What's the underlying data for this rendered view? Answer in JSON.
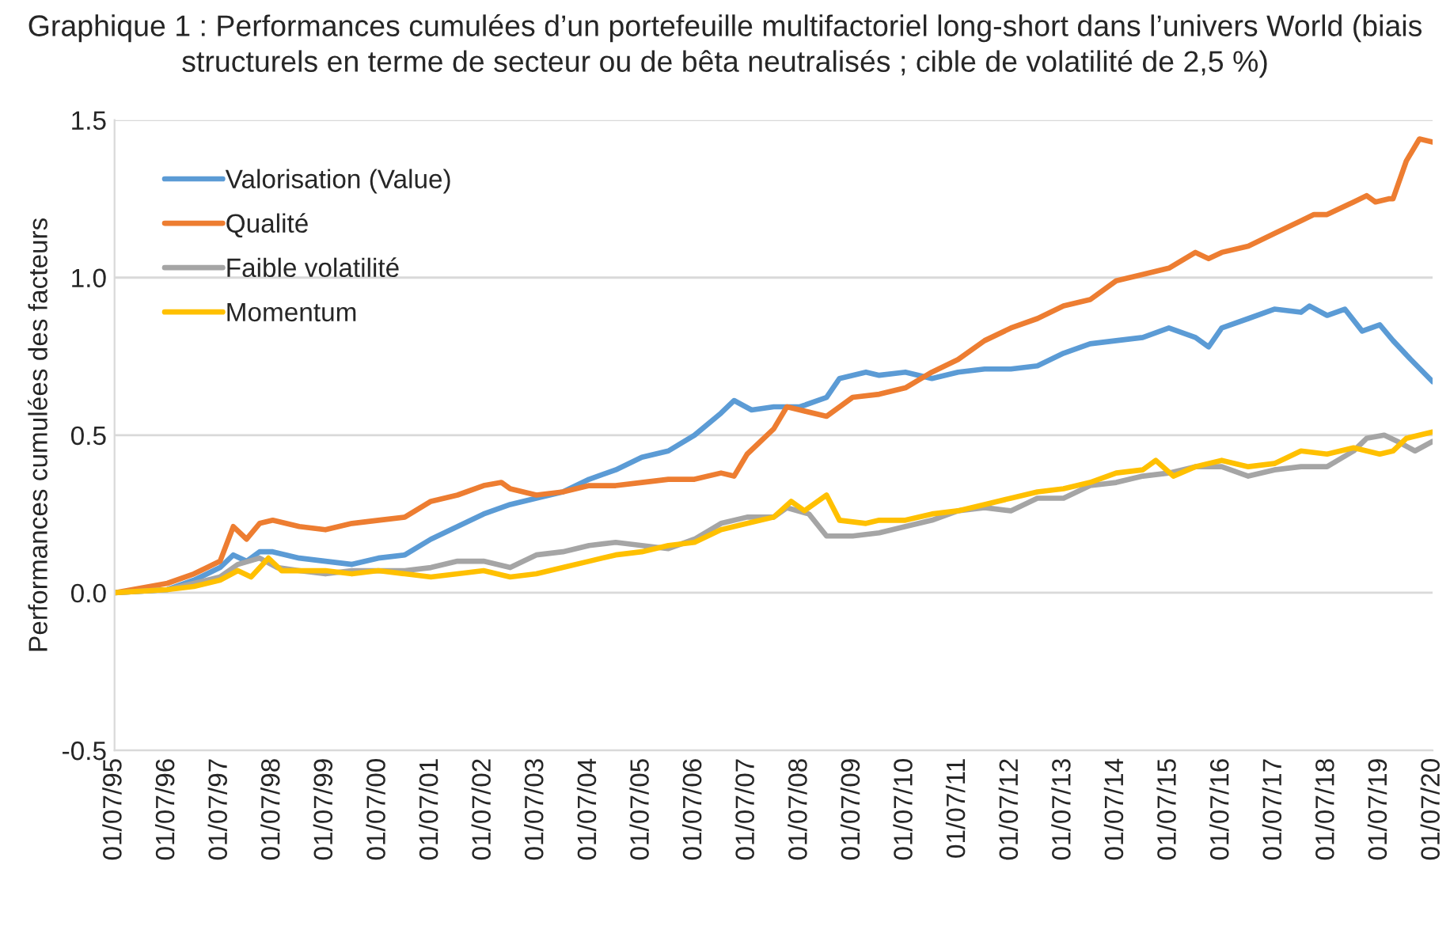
{
  "chart_data": {
    "type": "line",
    "title": "Graphique 1 : Performances cumulées d’un portefeuille multifactoriel long-short dans l’univers World (biais structurels en terme de secteur ou de bêta neutralisés ; cible de volatilité de 2,5 %)",
    "ylabel": "Performances cumulées des facteurs",
    "xlim": [
      "1995-07-01",
      "2020-07-01"
    ],
    "xticks": [
      {
        "value": "1995-07-01",
        "label": "01/07/95"
      },
      {
        "value": "1996-07-01",
        "label": "01/07/96"
      },
      {
        "value": "1997-07-01",
        "label": "01/07/97"
      },
      {
        "value": "1998-07-01",
        "label": "01/07/98"
      },
      {
        "value": "1999-07-01",
        "label": "01/07/99"
      },
      {
        "value": "2000-07-01",
        "label": "01/07/00"
      },
      {
        "value": "2001-07-01",
        "label": "01/07/01"
      },
      {
        "value": "2002-07-01",
        "label": "01/07/02"
      },
      {
        "value": "2003-07-01",
        "label": "01/07/03"
      },
      {
        "value": "2004-07-01",
        "label": "01/07/04"
      },
      {
        "value": "2005-07-01",
        "label": "01/07/05"
      },
      {
        "value": "2006-07-01",
        "label": "01/07/06"
      },
      {
        "value": "2007-07-01",
        "label": "01/07/07"
      },
      {
        "value": "2008-07-01",
        "label": "01/07/08"
      },
      {
        "value": "2009-07-01",
        "label": "01/07/09"
      },
      {
        "value": "2010-07-01",
        "label": "01/07/10"
      },
      {
        "value": "2011-07-01",
        "label": "01/07/11"
      },
      {
        "value": "2012-07-01",
        "label": "01/07/12"
      },
      {
        "value": "2013-07-01",
        "label": "01/07/13"
      },
      {
        "value": "2014-07-01",
        "label": "01/07/14"
      },
      {
        "value": "2015-07-01",
        "label": "01/07/15"
      },
      {
        "value": "2016-07-01",
        "label": "01/07/16"
      },
      {
        "value": "2017-07-01",
        "label": "01/07/17"
      },
      {
        "value": "2018-07-01",
        "label": "01/07/18"
      },
      {
        "value": "2019-07-01",
        "label": "01/07/19"
      },
      {
        "value": "2020-07-01",
        "label": "01/07/20"
      }
    ],
    "ylim": [
      -0.5,
      1.5
    ],
    "yticks": [
      {
        "value": -0.5,
        "label": "-0.5"
      },
      {
        "value": 0,
        "label": "0.0"
      },
      {
        "value": 0.5,
        "label": "0.5"
      },
      {
        "value": 1,
        "label": "1.0"
      },
      {
        "value": 1.5,
        "label": "1.5"
      }
    ],
    "grid": "y",
    "legend": "top left",
    "marker": "none",
    "line_style": "solid",
    "series": [
      {
        "name": "Valorisation (Value)",
        "color": "#5b9bd5",
        "x": [
          "1995-07",
          "1996-07",
          "1997-01",
          "1997-07",
          "1997-10",
          "1998-01",
          "1998-04",
          "1998-07",
          "1999-01",
          "1999-07",
          "2000-01",
          "2000-07",
          "2001-01",
          "2001-07",
          "2002-01",
          "2002-07",
          "2003-01",
          "2003-07",
          "2004-01",
          "2004-07",
          "2005-01",
          "2005-07",
          "2006-01",
          "2006-07",
          "2007-01",
          "2007-04",
          "2007-08",
          "2008-01",
          "2008-07",
          "2009-01",
          "2009-04",
          "2009-10",
          "2010-01",
          "2010-07",
          "2011-01",
          "2011-07",
          "2012-01",
          "2012-07",
          "2013-01",
          "2013-07",
          "2014-01",
          "2014-07",
          "2015-01",
          "2015-07",
          "2016-01",
          "2016-04",
          "2016-07",
          "2017-01",
          "2017-07",
          "2018-01",
          "2018-03",
          "2018-07",
          "2018-11",
          "2019-03",
          "2019-07",
          "2019-10",
          "2020-02",
          "2020-07"
        ],
        "values": [
          0,
          0.01,
          0.04,
          0.08,
          0.12,
          0.1,
          0.13,
          0.13,
          0.11,
          0.1,
          0.09,
          0.11,
          0.12,
          0.17,
          0.21,
          0.25,
          0.28,
          0.3,
          0.32,
          0.36,
          0.39,
          0.43,
          0.45,
          0.5,
          0.57,
          0.61,
          0.58,
          0.59,
          0.59,
          0.62,
          0.68,
          0.7,
          0.69,
          0.7,
          0.68,
          0.7,
          0.71,
          0.71,
          0.72,
          0.76,
          0.79,
          0.8,
          0.81,
          0.84,
          0.81,
          0.78,
          0.84,
          0.87,
          0.9,
          0.89,
          0.91,
          0.88,
          0.9,
          0.83,
          0.85,
          0.8,
          0.74,
          0.67
        ]
      },
      {
        "name": "Qualité",
        "color": "#ed7d31",
        "x": [
          "1995-07",
          "1996-07",
          "1997-01",
          "1997-07",
          "1997-10",
          "1998-01",
          "1998-04",
          "1998-07",
          "1999-01",
          "1999-07",
          "2000-01",
          "2000-07",
          "2001-01",
          "2001-07",
          "2002-01",
          "2002-07",
          "2002-11",
          "2003-01",
          "2003-07",
          "2004-01",
          "2004-07",
          "2005-01",
          "2005-07",
          "2006-01",
          "2006-07",
          "2007-01",
          "2007-04",
          "2007-07",
          "2008-01",
          "2008-04",
          "2008-07",
          "2009-01",
          "2009-07",
          "2010-01",
          "2010-07",
          "2011-01",
          "2011-07",
          "2012-01",
          "2012-07",
          "2013-01",
          "2013-07",
          "2014-01",
          "2014-07",
          "2015-01",
          "2015-07",
          "2016-01",
          "2016-04",
          "2016-07",
          "2017-01",
          "2017-07",
          "2018-01",
          "2018-04",
          "2018-07",
          "2019-01",
          "2019-04",
          "2019-06",
          "2019-09",
          "2019-10",
          "2020-01",
          "2020-04",
          "2020-07"
        ],
        "values": [
          0,
          0.03,
          0.06,
          0.1,
          0.21,
          0.17,
          0.22,
          0.23,
          0.21,
          0.2,
          0.22,
          0.23,
          0.24,
          0.29,
          0.31,
          0.34,
          0.35,
          0.33,
          0.31,
          0.32,
          0.34,
          0.34,
          0.35,
          0.36,
          0.36,
          0.38,
          0.37,
          0.44,
          0.52,
          0.59,
          0.58,
          0.56,
          0.62,
          0.63,
          0.65,
          0.7,
          0.74,
          0.8,
          0.84,
          0.87,
          0.91,
          0.93,
          0.99,
          1.01,
          1.03,
          1.08,
          1.06,
          1.08,
          1.1,
          1.14,
          1.18,
          1.2,
          1.2,
          1.24,
          1.26,
          1.24,
          1.25,
          1.25,
          1.37,
          1.44,
          1.43
        ]
      },
      {
        "name": "Faible volatilité",
        "color": "#a5a5a5",
        "x": [
          "1995-07",
          "1996-07",
          "1997-01",
          "1997-07",
          "1997-11",
          "1998-04",
          "1998-08",
          "1999-01",
          "1999-07",
          "2000-01",
          "2000-07",
          "2001-01",
          "2001-07",
          "2002-01",
          "2002-07",
          "2003-01",
          "2003-07",
          "2004-01",
          "2004-07",
          "2005-01",
          "2005-07",
          "2006-01",
          "2006-07",
          "2007-01",
          "2007-07",
          "2008-01",
          "2008-04",
          "2008-09",
          "2009-01",
          "2009-07",
          "2010-01",
          "2010-07",
          "2011-01",
          "2011-07",
          "2012-01",
          "2012-07",
          "2013-01",
          "2013-07",
          "2014-01",
          "2014-07",
          "2015-01",
          "2015-07",
          "2016-01",
          "2016-07",
          "2017-01",
          "2017-07",
          "2018-01",
          "2018-07",
          "2019-01",
          "2019-04",
          "2019-08",
          "2019-11",
          "2020-03",
          "2020-07"
        ],
        "values": [
          0,
          0.01,
          0.03,
          0.05,
          0.09,
          0.11,
          0.08,
          0.07,
          0.06,
          0.07,
          0.07,
          0.07,
          0.08,
          0.1,
          0.1,
          0.08,
          0.12,
          0.13,
          0.15,
          0.16,
          0.15,
          0.14,
          0.17,
          0.22,
          0.24,
          0.24,
          0.27,
          0.25,
          0.18,
          0.18,
          0.19,
          0.21,
          0.23,
          0.26,
          0.27,
          0.26,
          0.3,
          0.3,
          0.34,
          0.35,
          0.37,
          0.38,
          0.4,
          0.4,
          0.37,
          0.39,
          0.4,
          0.4,
          0.45,
          0.49,
          0.5,
          0.48,
          0.45,
          0.48
        ]
      },
      {
        "name": "Momentum",
        "color": "#ffc000",
        "x": [
          "1995-07",
          "1996-07",
          "1997-01",
          "1997-07",
          "1997-11",
          "1998-02",
          "1998-06",
          "1998-09",
          "1999-01",
          "1999-07",
          "2000-01",
          "2000-07",
          "2001-01",
          "2001-07",
          "2002-01",
          "2002-07",
          "2003-01",
          "2003-07",
          "2004-01",
          "2004-07",
          "2005-01",
          "2005-07",
          "2006-01",
          "2006-07",
          "2007-01",
          "2007-07",
          "2008-01",
          "2008-05",
          "2008-08",
          "2009-01",
          "2009-04",
          "2009-10",
          "2010-01",
          "2010-07",
          "2011-01",
          "2011-07",
          "2012-01",
          "2012-07",
          "2013-01",
          "2013-07",
          "2014-01",
          "2014-07",
          "2015-01",
          "2015-04",
          "2015-08",
          "2016-01",
          "2016-07",
          "2017-01",
          "2017-07",
          "2018-01",
          "2018-07",
          "2019-01",
          "2019-07",
          "2019-10",
          "2020-01",
          "2020-07"
        ],
        "values": [
          0,
          0.01,
          0.02,
          0.04,
          0.07,
          0.05,
          0.11,
          0.07,
          0.07,
          0.07,
          0.06,
          0.07,
          0.06,
          0.05,
          0.06,
          0.07,
          0.05,
          0.06,
          0.08,
          0.1,
          0.12,
          0.13,
          0.15,
          0.16,
          0.2,
          0.22,
          0.24,
          0.29,
          0.26,
          0.31,
          0.23,
          0.22,
          0.23,
          0.23,
          0.25,
          0.26,
          0.28,
          0.3,
          0.32,
          0.33,
          0.35,
          0.38,
          0.39,
          0.42,
          0.37,
          0.4,
          0.42,
          0.4,
          0.41,
          0.45,
          0.44,
          0.46,
          0.44,
          0.45,
          0.49,
          0.51
        ]
      }
    ]
  }
}
